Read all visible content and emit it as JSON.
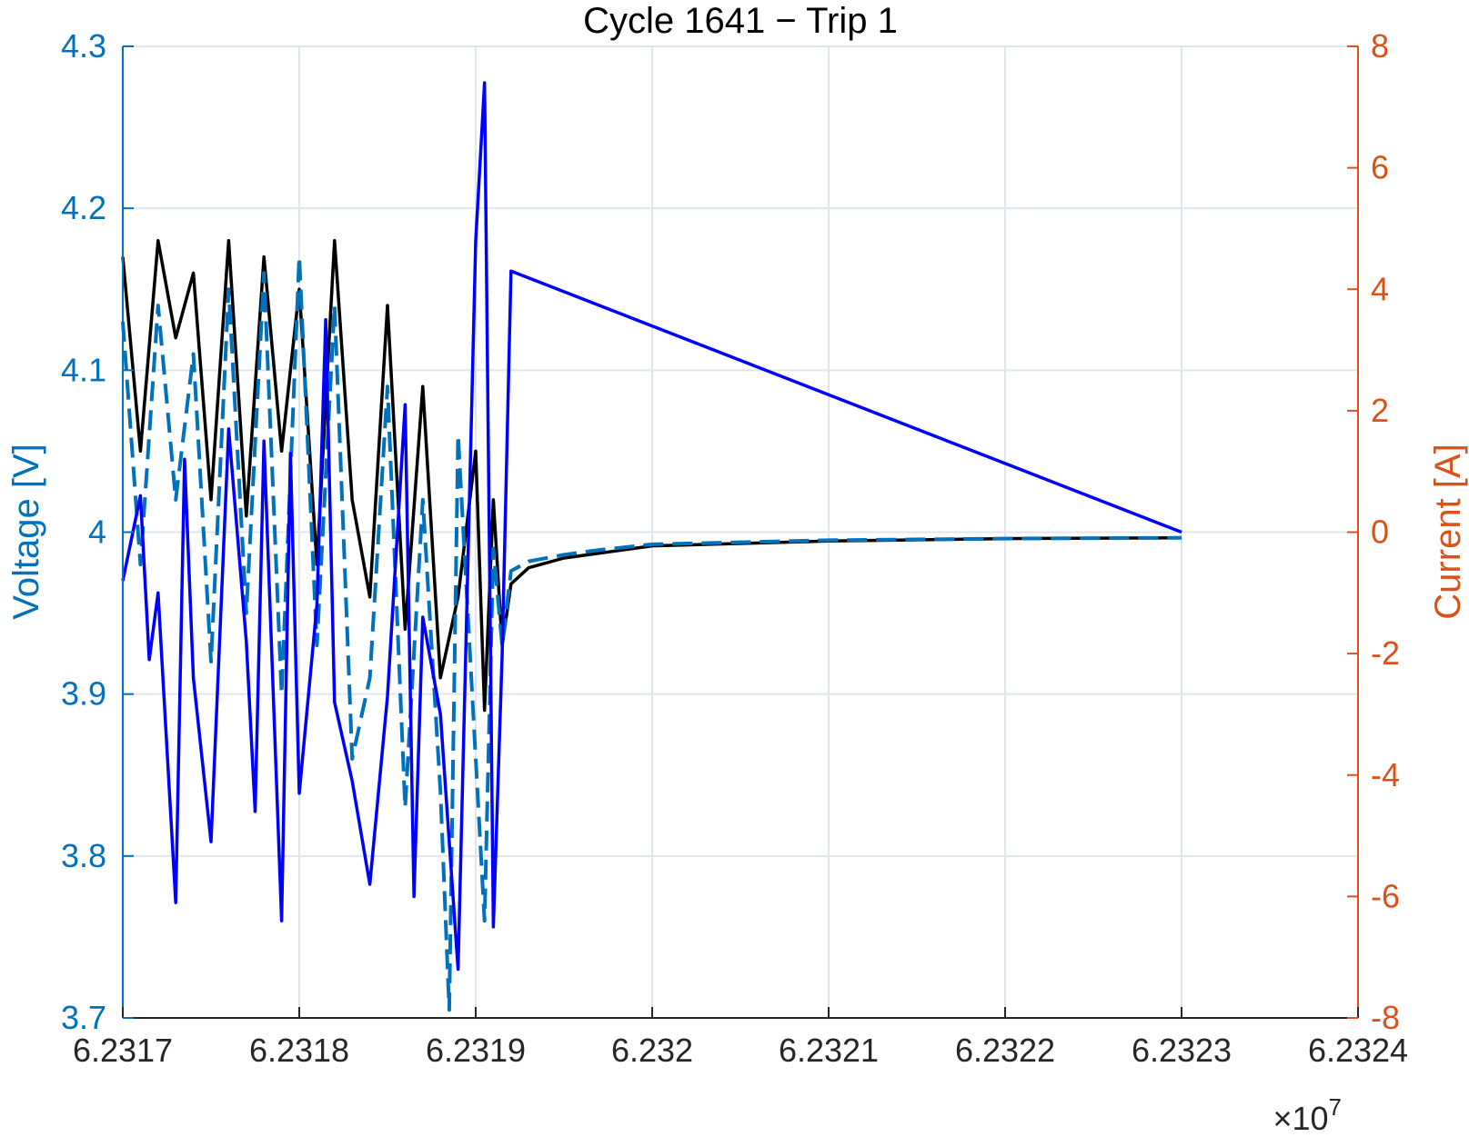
{
  "chart_data": {
    "type": "line",
    "title": "Cycle 1641 − Trip 1",
    "xlabel": "",
    "ylabel_left": "Voltage [V]",
    "ylabel_right": "Current [A]",
    "x_exponent_label": "×10",
    "x_exponent_power": "7",
    "xlim": [
      6.2317,
      6.2324
    ],
    "ylim_left": [
      3.7,
      4.3
    ],
    "ylim_right": [
      -8,
      8
    ],
    "x_ticks": [
      6.2317,
      6.2318,
      6.2319,
      6.232,
      6.2321,
      6.2322,
      6.2323,
      6.2324
    ],
    "x_tick_labels": [
      "6.2317",
      "6.2318",
      "6.2319",
      "6.232",
      "6.2321",
      "6.2322",
      "6.2323",
      "6.2324"
    ],
    "y_left_ticks": [
      3.7,
      3.8,
      3.9,
      4.0,
      4.1,
      4.2,
      4.3
    ],
    "y_left_tick_labels": [
      "3.7",
      "3.8",
      "3.9",
      "4",
      "4.1",
      "4.2",
      "4.3"
    ],
    "y_right_ticks": [
      -8,
      -6,
      -4,
      -2,
      0,
      2,
      4,
      6,
      8
    ],
    "y_right_tick_labels": [
      "-8",
      "-6",
      "-4",
      "-2",
      "0",
      "2",
      "4",
      "6",
      "8"
    ],
    "grid": true,
    "colors": {
      "left_axis": "#0072BD",
      "right_axis": "#D95319",
      "grid": "#dfe6ee",
      "current": "#0000FF",
      "voltage_measured": "#000000",
      "voltage_model": "#0072BD"
    },
    "series": [
      {
        "axis": "right",
        "style": "solid",
        "color": "#0000FF",
        "x": [
          6.2317,
          6.23171,
          6.231715,
          6.23172,
          6.23173,
          6.231735,
          6.23174,
          6.23175,
          6.23176,
          6.23177,
          6.231775,
          6.23178,
          6.23179,
          6.231795,
          6.2318,
          6.23181,
          6.231815,
          6.23182,
          6.23183,
          6.23184,
          6.23185,
          6.23186,
          6.231865,
          6.23187,
          6.23188,
          6.23189,
          6.2319,
          6.231905,
          6.23191,
          6.231915,
          6.23192,
          6.2323
        ],
        "values": [
          -0.8,
          0.6,
          -2.1,
          -1.0,
          -6.1,
          1.2,
          -2.4,
          -5.1,
          1.7,
          -1.8,
          -4.6,
          1.5,
          -6.4,
          1.3,
          -4.3,
          -1.2,
          3.5,
          -2.8,
          -4.1,
          -5.8,
          -2.7,
          2.1,
          -6.0,
          -1.4,
          -3.0,
          -7.2,
          4.8,
          7.4,
          -6.5,
          -2.0,
          4.3,
          0.0
        ]
      },
      {
        "axis": "left",
        "style": "solid",
        "color": "#000000",
        "x": [
          6.2317,
          6.23171,
          6.23172,
          6.23173,
          6.23174,
          6.23175,
          6.23176,
          6.23177,
          6.23178,
          6.23179,
          6.2318,
          6.23181,
          6.23182,
          6.23183,
          6.23184,
          6.23185,
          6.23186,
          6.23187,
          6.23188,
          6.23189,
          6.2319,
          6.231905,
          6.23191,
          6.231915,
          6.23192,
          6.23193,
          6.23195,
          6.23197,
          6.232,
          6.2321,
          6.2322,
          6.2323
        ],
        "values": [
          4.17,
          4.05,
          4.18,
          4.12,
          4.16,
          4.02,
          4.18,
          4.01,
          4.17,
          4.05,
          4.15,
          3.98,
          4.18,
          4.02,
          3.96,
          4.14,
          3.94,
          4.09,
          3.91,
          3.96,
          4.05,
          3.89,
          4.02,
          3.93,
          3.968,
          3.978,
          3.984,
          3.987,
          3.9915,
          3.9945,
          3.996,
          3.9965
        ]
      },
      {
        "axis": "left",
        "style": "dashed",
        "color": "#0072BD",
        "x": [
          6.2317,
          6.23171,
          6.23172,
          6.23173,
          6.23174,
          6.23175,
          6.23176,
          6.23177,
          6.23178,
          6.23179,
          6.2318,
          6.23181,
          6.23182,
          6.23183,
          6.23184,
          6.23185,
          6.23186,
          6.23187,
          6.23188,
          6.231885,
          6.23189,
          6.2319,
          6.231905,
          6.23191,
          6.231915,
          6.23192,
          6.23193,
          6.23195,
          6.23197,
          6.232,
          6.2321,
          6.2322,
          6.2323
        ],
        "values": [
          4.13,
          3.98,
          4.14,
          4.02,
          4.11,
          3.92,
          4.15,
          3.95,
          4.16,
          3.9,
          4.17,
          3.93,
          4.14,
          3.86,
          3.91,
          4.09,
          3.83,
          4.02,
          3.84,
          3.705,
          4.06,
          3.86,
          3.76,
          3.99,
          3.93,
          3.976,
          3.982,
          3.986,
          3.989,
          3.9925,
          3.995,
          3.996,
          3.9965
        ]
      }
    ]
  }
}
